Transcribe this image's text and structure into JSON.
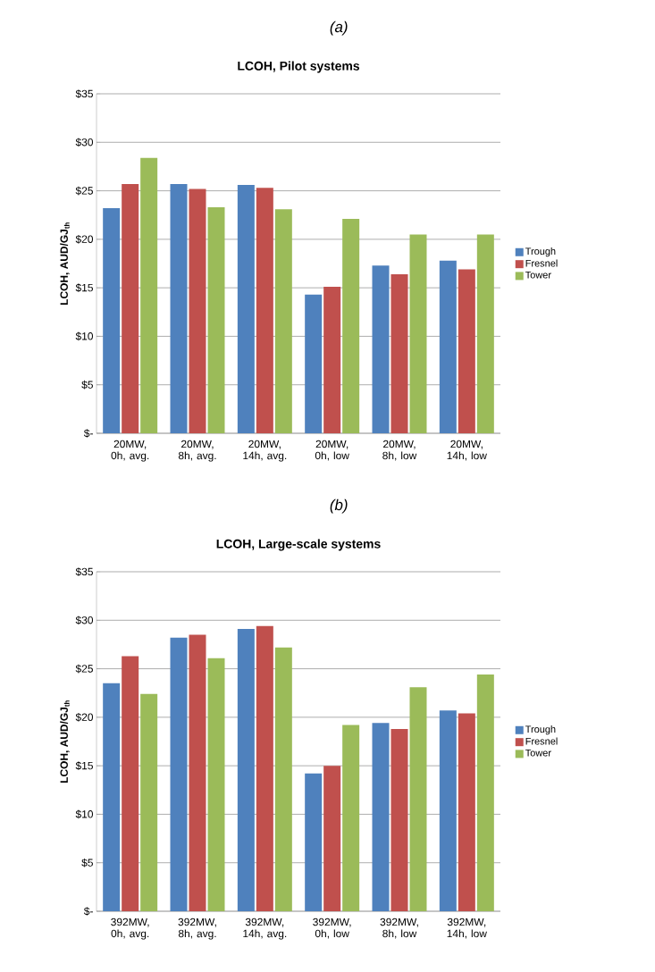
{
  "chart_data": [
    {
      "type": "bar",
      "title": "LCOH, Pilot systems",
      "annotations": [
        "(a)"
      ],
      "ylabel": "LCOH,  AUD/GJ$_{th}$",
      "categories": [
        "20MW, 0h, avg.",
        "20MW, 8h, avg.",
        "20MW, 14h, avg.",
        "20MW, 0h, low",
        "20MW, 8h, low",
        "20MW, 14h, low"
      ],
      "series": [
        {
          "name": "Trough",
          "color": "#4f81bd",
          "values": [
            23.2,
            25.7,
            25.6,
            14.3,
            17.3,
            17.8
          ]
        },
        {
          "name": "Fresnel",
          "color": "#c0504d",
          "values": [
            25.7,
            25.2,
            25.3,
            15.1,
            16.4,
            16.9
          ]
        },
        {
          "name": "Tower",
          "color": "#9bbb59",
          "values": [
            28.4,
            23.3,
            23.1,
            22.1,
            20.5,
            20.5
          ]
        }
      ],
      "ylim": [
        0,
        35
      ],
      "yticks": [
        {
          "value": 0,
          "label": "$-"
        },
        {
          "value": 5,
          "label": "$5"
        },
        {
          "value": 10,
          "label": "$10"
        },
        {
          "value": 15,
          "label": "$15"
        },
        {
          "value": 20,
          "label": "$20"
        },
        {
          "value": 25,
          "label": "$25"
        },
        {
          "value": 30,
          "label": "$30"
        },
        {
          "value": 35,
          "label": "$35"
        }
      ],
      "grid": "y",
      "legend": "right"
    },
    {
      "type": "bar",
      "title": "LCOH, Large-scale systems",
      "annotations": [
        "(b)"
      ],
      "ylabel": "LCOH,  AUD/GJ$_{th}$",
      "categories": [
        "392MW, 0h, avg.",
        "392MW, 8h, avg.",
        "392MW, 14h, avg.",
        "392MW, 0h, low",
        "392MW, 8h, low",
        "392MW, 14h, low"
      ],
      "series": [
        {
          "name": "Trough",
          "color": "#4f81bd",
          "values": [
            23.5,
            28.2,
            29.1,
            14.2,
            19.4,
            20.7
          ]
        },
        {
          "name": "Fresnel",
          "color": "#c0504d",
          "values": [
            26.3,
            28.5,
            29.4,
            15.0,
            18.8,
            20.4
          ]
        },
        {
          "name": "Tower",
          "color": "#9bbb59",
          "values": [
            22.4,
            26.1,
            27.2,
            19.2,
            23.1,
            24.4
          ]
        }
      ],
      "ylim": [
        0,
        35
      ],
      "yticks": [
        {
          "value": 0,
          "label": "$-"
        },
        {
          "value": 5,
          "label": "$5"
        },
        {
          "value": 10,
          "label": "$10"
        },
        {
          "value": 15,
          "label": "$15"
        },
        {
          "value": 20,
          "label": "$20"
        },
        {
          "value": 25,
          "label": "$25"
        },
        {
          "value": 30,
          "label": "$30"
        },
        {
          "value": 35,
          "label": "$35"
        }
      ],
      "grid": "y",
      "legend": "right"
    }
  ]
}
